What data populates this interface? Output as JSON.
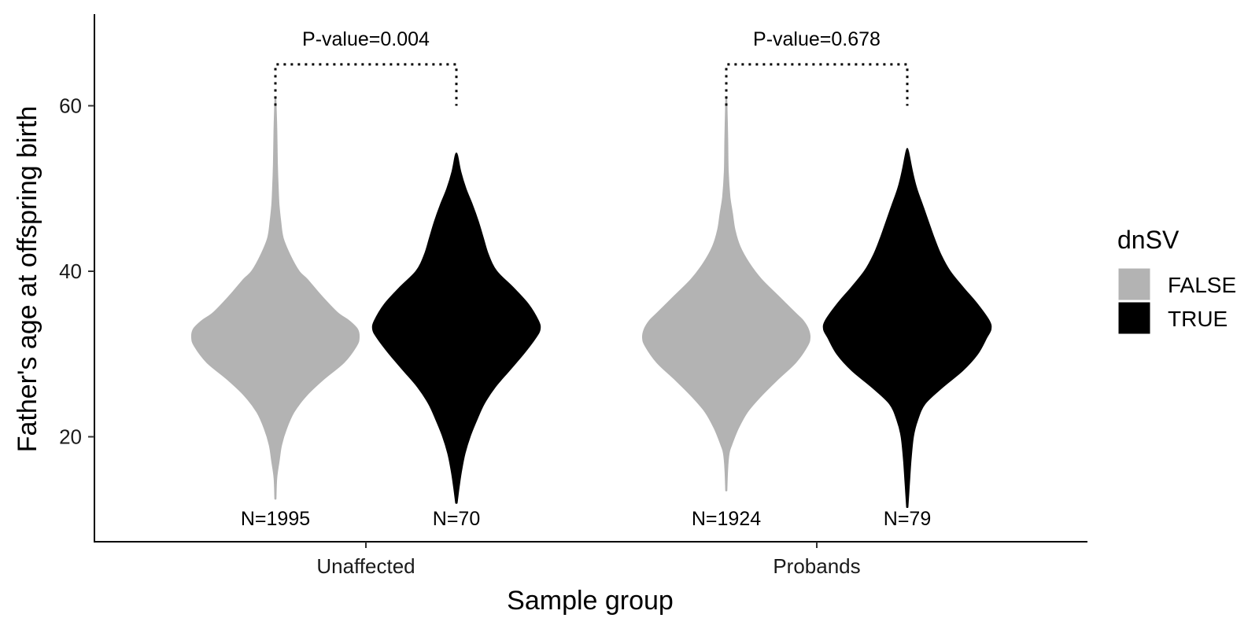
{
  "chart_data": {
    "type": "violin",
    "xlabel": "Sample group",
    "ylabel": "Father's age at offspring birth",
    "categories": [
      "Unaffected",
      "Probands"
    ],
    "y_ticks": [
      "20",
      "40",
      "60"
    ],
    "ylim": [
      8,
      72
    ],
    "grid": false,
    "legend": {
      "title": "dnSV",
      "position": "right",
      "entries": [
        {
          "label": "FALSE",
          "color": "#b3b3b3"
        },
        {
          "label": "TRUE",
          "color": "#000000"
        }
      ]
    },
    "series": [
      {
        "name": "FALSE",
        "color": "#b3b3b3",
        "groups": [
          {
            "category": "Unaffected",
            "n_label": "N=1995",
            "min": 12.5,
            "max": 60.5,
            "profile": [
              [
                12.5,
                0.3
              ],
              [
                15,
                1.2
              ],
              [
                17,
                4
              ],
              [
                19,
                7
              ],
              [
                21,
                13
              ],
              [
                23,
                22
              ],
              [
                25,
                37
              ],
              [
                27,
                58
              ],
              [
                29,
                82
              ],
              [
                31,
                97
              ],
              [
                32,
                100
              ],
              [
                33,
                98
              ],
              [
                34,
                88
              ],
              [
                35,
                74
              ],
              [
                37,
                55
              ],
              [
                39,
                38
              ],
              [
                40,
                28
              ],
              [
                42,
                17
              ],
              [
                44,
                9
              ],
              [
                46,
                6
              ],
              [
                48,
                4
              ],
              [
                50,
                3
              ],
              [
                53,
                2
              ],
              [
                57,
                1.3
              ],
              [
                60.5,
                0.3
              ]
            ]
          },
          {
            "category": "Probands",
            "n_label": "N=1924",
            "min": 13.5,
            "max": 60.5,
            "profile": [
              [
                13.5,
                0.3
              ],
              [
                16,
                1.2
              ],
              [
                18,
                3
              ],
              [
                19,
                6
              ],
              [
                21,
                14
              ],
              [
                23,
                25
              ],
              [
                25,
                42
              ],
              [
                27,
                62
              ],
              [
                29,
                83
              ],
              [
                31,
                97
              ],
              [
                32,
                100
              ],
              [
                33,
                98
              ],
              [
                34,
                92
              ],
              [
                35,
                82
              ],
              [
                37,
                62
              ],
              [
                39,
                42
              ],
              [
                41,
                27
              ],
              [
                43,
                16
              ],
              [
                45,
                10
              ],
              [
                47,
                7
              ],
              [
                49,
                4
              ],
              [
                52,
                2
              ],
              [
                56,
                1.3
              ],
              [
                60.5,
                0.3
              ]
            ]
          }
        ]
      },
      {
        "name": "TRUE",
        "color": "#000000",
        "groups": [
          {
            "category": "Unaffected",
            "n_label": "N=70",
            "min": 12,
            "max": 54,
            "profile": [
              [
                12,
                0.5
              ],
              [
                14,
                3
              ],
              [
                16,
                6
              ],
              [
                18,
                10
              ],
              [
                20,
                16
              ],
              [
                22,
                24
              ],
              [
                24,
                33
              ],
              [
                26,
                46
              ],
              [
                28,
                63
              ],
              [
                30,
                80
              ],
              [
                32,
                95
              ],
              [
                33,
                100
              ],
              [
                34,
                98
              ],
              [
                36,
                86
              ],
              [
                38,
                68
              ],
              [
                40,
                48
              ],
              [
                42,
                38
              ],
              [
                44,
                32
              ],
              [
                46,
                26
              ],
              [
                48,
                19
              ],
              [
                50,
                11
              ],
              [
                52,
                5
              ],
              [
                54,
                1
              ]
            ]
          },
          {
            "category": "Probands",
            "n_label": "N=79",
            "min": 11.5,
            "max": 54.5,
            "profile": [
              [
                11.5,
                0.4
              ],
              [
                14,
                2
              ],
              [
                17,
                4
              ],
              [
                20,
                7
              ],
              [
                22,
                12
              ],
              [
                24,
                21
              ],
              [
                26,
                42
              ],
              [
                28,
                66
              ],
              [
                30,
                84
              ],
              [
                32,
                95
              ],
              [
                33,
                100
              ],
              [
                34,
                98
              ],
              [
                36,
                84
              ],
              [
                38,
                67
              ],
              [
                40,
                51
              ],
              [
                42,
                40
              ],
              [
                44,
                32
              ],
              [
                46,
                25
              ],
              [
                48,
                18
              ],
              [
                50,
                11
              ],
              [
                52,
                6
              ],
              [
                54.5,
                1
              ]
            ]
          }
        ]
      }
    ],
    "annotations": [
      {
        "text": "P-value=0.004",
        "category": "Unaffected",
        "y": 65
      },
      {
        "text": "P-value=0.678",
        "category": "Probands",
        "y": 65
      }
    ]
  }
}
